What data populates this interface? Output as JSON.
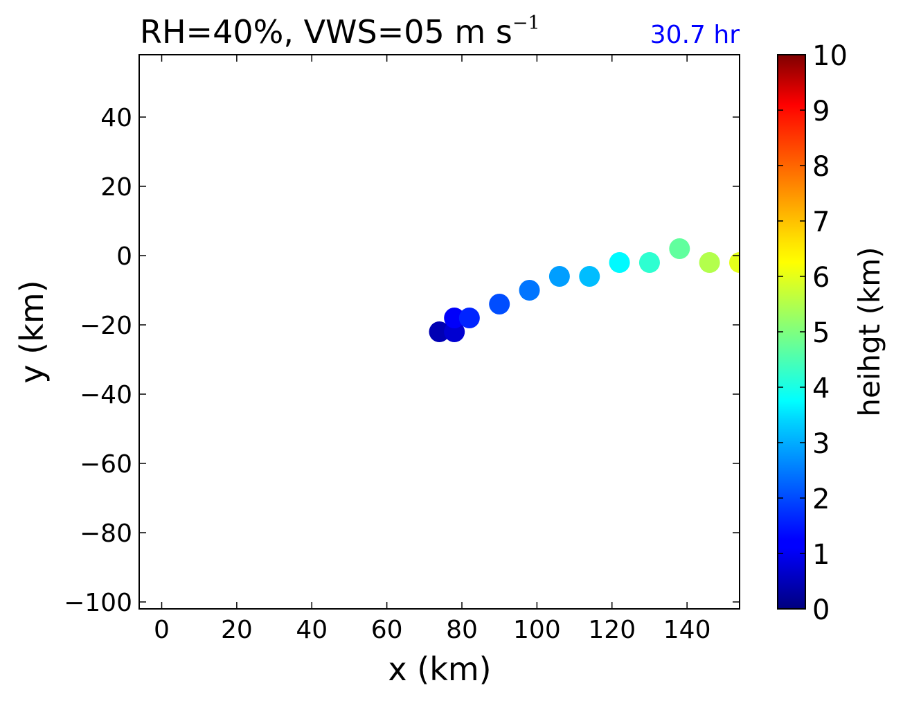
{
  "chart_data": {
    "type": "scatter",
    "title_main": "RH=40%, VWS=05 m s",
    "title_exp": "−1",
    "time_label": "30.7 hr",
    "xlabel": "x (km)",
    "ylabel": "y (km)",
    "xlim": [
      -6,
      154
    ],
    "ylim": [
      -102,
      58
    ],
    "xticks": [
      0,
      20,
      40,
      60,
      80,
      100,
      120,
      140
    ],
    "yticks": [
      -100,
      -80,
      -60,
      -40,
      -20,
      0,
      20,
      40
    ],
    "colorbar": {
      "label": "heihgt (km)",
      "range": [
        0,
        10
      ],
      "ticks": [
        0,
        1,
        2,
        3,
        4,
        5,
        6,
        7,
        8,
        9,
        10
      ],
      "colormap": "jet"
    },
    "points": [
      {
        "x": 74,
        "y": -22,
        "height": 0.5
      },
      {
        "x": 78,
        "y": -22,
        "height": 0.8
      },
      {
        "x": 78,
        "y": -18,
        "height": 1.2
      },
      {
        "x": 82,
        "y": -18,
        "height": 1.6
      },
      {
        "x": 90,
        "y": -14,
        "height": 2.0
      },
      {
        "x": 98,
        "y": -10,
        "height": 2.4
      },
      {
        "x": 106,
        "y": -6,
        "height": 2.8
      },
      {
        "x": 114,
        "y": -6,
        "height": 3.1
      },
      {
        "x": 122,
        "y": -2,
        "height": 3.7
      },
      {
        "x": 130,
        "y": -2,
        "height": 4.2
      },
      {
        "x": 138,
        "y": 2,
        "height": 4.7
      },
      {
        "x": 146,
        "y": -2,
        "height": 5.5
      },
      {
        "x": 154,
        "y": -2,
        "height": 6.0
      }
    ]
  }
}
